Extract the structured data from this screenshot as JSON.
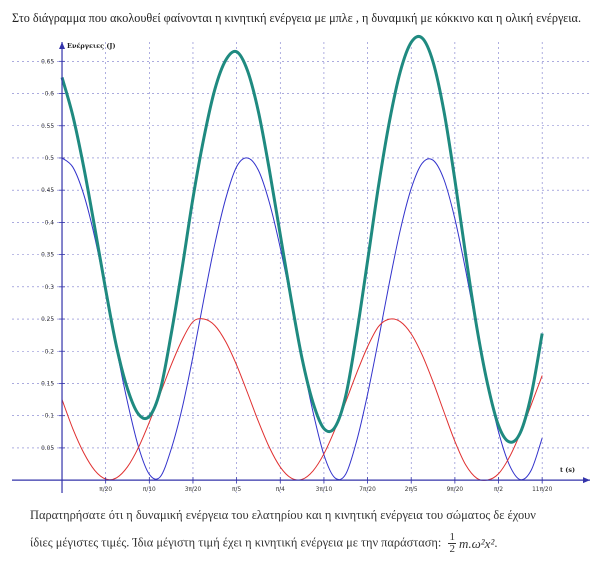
{
  "page": {
    "intro_text": "Στο διάγραμμα που ακολουθεί φαίνονται η κινητική ενέργεια με μπλε , η δυναμική με κόκκινο και η ολική ενέργεια.",
    "note_line1": "Παρατηρήσατε ότι η δυναμική ενέργεια του ελατηρίου και η κινητική ενέργεια του σώματος δε έχουν",
    "note_line2": "ίδιες μέγιστες τιμές. Ίδια μέγιστη τιμή έχει η κινητική ενέργεια με την παράσταση:",
    "formula": {
      "numerator": "1",
      "denominator": "2",
      "expression": "m.ω²x²",
      "suffix": "."
    }
  },
  "chart_data": {
    "type": "line",
    "xlabel": "t (s)",
    "ylabel": "Ενέργειες (J)",
    "x_ticks": [
      "π/20",
      "π/10",
      "3π/20",
      "π/5",
      "π/4",
      "3π/10",
      "7π/20",
      "2π/5",
      "9π/20",
      "π/2",
      "11π/20"
    ],
    "x_tick_values": [
      0.15708,
      0.31416,
      0.47124,
      0.62832,
      0.7854,
      0.94248,
      1.09956,
      1.25664,
      1.41372,
      1.5708,
      1.72788
    ],
    "y_ticks": [
      "0.05",
      "0.1",
      "0.15",
      "0.2",
      "0.25",
      "0.3",
      "0.35",
      "0.4",
      "0.45",
      "0.5",
      "0.55",
      "0.6",
      "0.65"
    ],
    "y_tick_values": [
      0.05,
      0.1,
      0.15,
      0.2,
      0.25,
      0.3,
      0.35,
      0.4,
      0.45,
      0.5,
      0.55,
      0.6,
      0.65
    ],
    "xlim": [
      -0.18,
      1.9
    ],
    "ylim": [
      -0.02,
      0.68
    ],
    "grid": true,
    "series": [
      {
        "color": "#3333cc",
        "x": [
          0,
          0.0393,
          0.0785,
          0.1178,
          0.1571,
          0.1963,
          0.2356,
          0.2749,
          0.3142,
          0.3534,
          0.3927,
          0.432,
          0.4712,
          0.5105,
          0.5498,
          0.589,
          0.6283,
          0.6676,
          0.7069,
          0.7461,
          0.7854,
          0.8247,
          0.8639,
          0.9032,
          0.9425,
          0.9817,
          1.021,
          1.0603,
          1.0996,
          1.1388,
          1.1781,
          1.2174,
          1.2566,
          1.2959,
          1.3352,
          1.3744,
          1.4137,
          1.453,
          1.4923,
          1.5315,
          1.5708,
          1.6101,
          1.6493,
          1.6886,
          1.7279
        ],
        "values": [
          0.5,
          0.4855,
          0.4428,
          0.3768,
          0.2939,
          0.2032,
          0.1211,
          0.052,
          0.009,
          0.0051,
          0.0479,
          0.1111,
          0.1918,
          0.2812,
          0.3662,
          0.4368,
          0.4864,
          0.5,
          0.4807,
          0.4309,
          0.3605,
          0.2773,
          0.1874,
          0.1059,
          0.0392,
          0.0037,
          0.0093,
          0.0608,
          0.1333,
          0.2178,
          0.3065,
          0.3883,
          0.4525,
          0.4917,
          0.4966,
          0.4666,
          0.4057,
          0.3248,
          0.2349,
          0.1488,
          0.0748,
          0.0234,
          0.0008,
          0.0155,
          0.0653
        ]
      },
      {
        "color": "#e03030",
        "x": [
          0,
          0.0393,
          0.0785,
          0.1178,
          0.1571,
          0.1963,
          0.2356,
          0.2749,
          0.3142,
          0.3534,
          0.3927,
          0.432,
          0.4712,
          0.5105,
          0.5498,
          0.589,
          0.6283,
          0.6676,
          0.7069,
          0.7461,
          0.7854,
          0.8247,
          0.8639,
          0.9032,
          0.9425,
          0.9817,
          1.021,
          1.0603,
          1.0996,
          1.1388,
          1.1781,
          1.2174,
          1.2566,
          1.2959,
          1.3352,
          1.3744,
          1.4137,
          1.453,
          1.4923,
          1.5315,
          1.5708,
          1.6101,
          1.6493,
          1.6886,
          1.7279
        ],
        "values": [
          0.125,
          0.0793,
          0.0421,
          0.0151,
          0.0017,
          0.0036,
          0.0206,
          0.0505,
          0.0899,
          0.1341,
          0.1784,
          0.2173,
          0.2459,
          0.25,
          0.24,
          0.2149,
          0.1785,
          0.1354,
          0.0908,
          0.0508,
          0.0203,
          0.0032,
          0.0012,
          0.0143,
          0.0408,
          0.078,
          0.1215,
          0.1662,
          0.207,
          0.2383,
          0.2498,
          0.2459,
          0.227,
          0.1945,
          0.1525,
          0.1059,
          0.0603,
          0.0234,
          0.003,
          0.0001,
          0.0099,
          0.0358,
          0.0729,
          0.117,
          0.1623
        ]
      },
      {
        "color": "#1f8a80",
        "x": [
          0,
          0.0393,
          0.0785,
          0.1178,
          0.1571,
          0.1963,
          0.2356,
          0.2749,
          0.3142,
          0.3534,
          0.3927,
          0.432,
          0.4712,
          0.5105,
          0.5498,
          0.589,
          0.6283,
          0.6676,
          0.7069,
          0.7461,
          0.7854,
          0.8247,
          0.8639,
          0.9032,
          0.9425,
          0.9817,
          1.021,
          1.0603,
          1.0996,
          1.1388,
          1.1781,
          1.2174,
          1.2566,
          1.2959,
          1.3352,
          1.3744,
          1.4137,
          1.453,
          1.4923,
          1.5315,
          1.5708,
          1.6101,
          1.6493,
          1.6886,
          1.7279
        ],
        "values": [
          0.625,
          0.5648,
          0.4849,
          0.3919,
          0.2956,
          0.2068,
          0.1417,
          0.1025,
          0.0989,
          0.1392,
          0.2263,
          0.3284,
          0.4377,
          0.5312,
          0.6062,
          0.6517,
          0.6649,
          0.6354,
          0.5715,
          0.4817,
          0.3808,
          0.2805,
          0.1886,
          0.1202,
          0.08,
          0.0817,
          0.1308,
          0.227,
          0.3403,
          0.4561,
          0.5563,
          0.6342,
          0.6795,
          0.6862,
          0.6491,
          0.5725,
          0.466,
          0.3482,
          0.2379,
          0.1489,
          0.0847,
          0.0592,
          0.0737,
          0.1325,
          0.2276
        ]
      }
    ]
  }
}
